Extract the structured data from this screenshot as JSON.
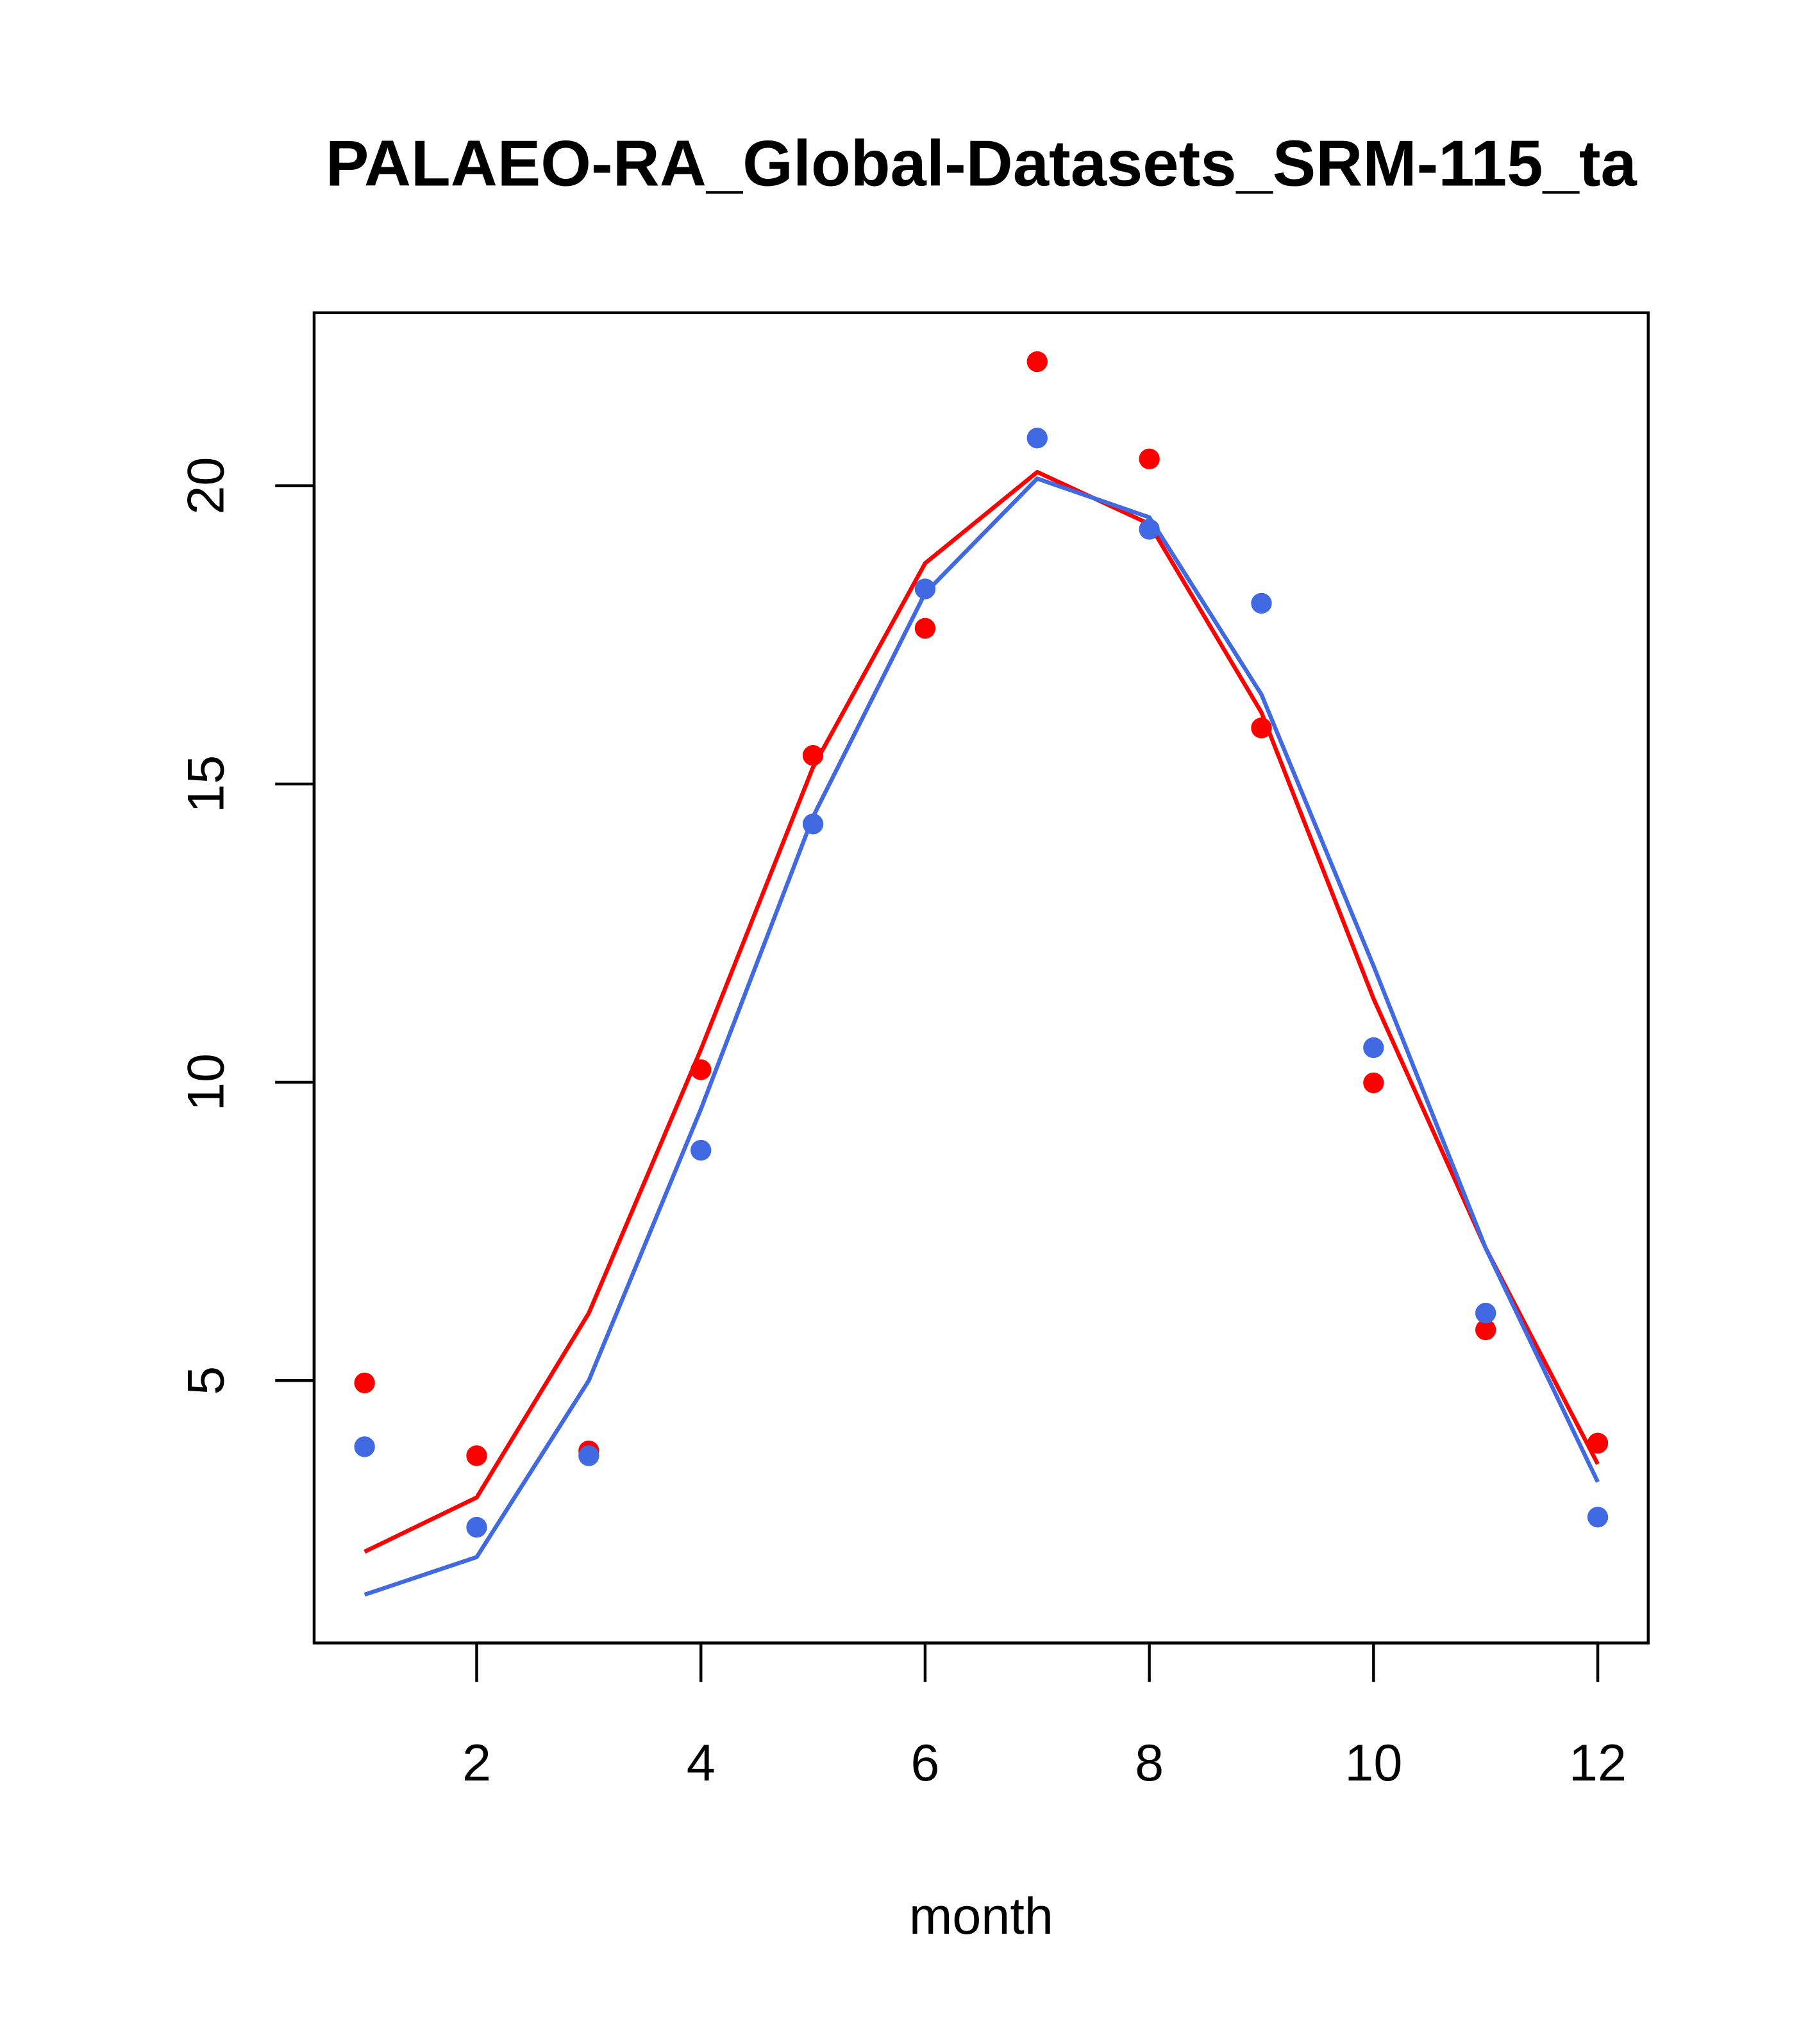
{
  "chart_data": {
    "type": "scatter",
    "title": "PALAEO-RA_Global-Datasets_SRM-115_ta",
    "xlabel": "month",
    "ylabel": "",
    "xlim": [
      0.55,
      12.45
    ],
    "ylim": [
      0.6,
      22.9
    ],
    "xticks": [
      2,
      4,
      6,
      8,
      10,
      12
    ],
    "yticks": [
      5,
      10,
      15,
      20
    ],
    "x": [
      1,
      2,
      3,
      4,
      5,
      6,
      7,
      8,
      9,
      10,
      11,
      12
    ],
    "series": [
      {
        "name": "red points",
        "kind": "points",
        "color": "#ff0000",
        "values": [
          4.96,
          3.74,
          3.82,
          10.21,
          15.48,
          17.61,
          22.08,
          20.45,
          15.94,
          9.99,
          5.85,
          3.95
        ]
      },
      {
        "name": "blue points",
        "kind": "points",
        "color": "#4169e1",
        "values": [
          3.89,
          2.54,
          3.74,
          8.86,
          14.33,
          18.27,
          20.8,
          19.27,
          18.03,
          10.58,
          6.13,
          2.71
        ]
      },
      {
        "name": "red line",
        "kind": "line",
        "color": "#ff0000",
        "values": [
          2.13,
          3.04,
          6.13,
          10.55,
          15.28,
          18.7,
          20.23,
          19.36,
          16.2,
          11.4,
          7.22,
          3.6
        ]
      },
      {
        "name": "blue line",
        "kind": "line",
        "color": "#4169e1",
        "values": [
          1.41,
          2.04,
          5.0,
          9.55,
          14.45,
          18.2,
          20.12,
          19.47,
          16.5,
          11.95,
          7.22,
          3.3
        ]
      }
    ]
  }
}
